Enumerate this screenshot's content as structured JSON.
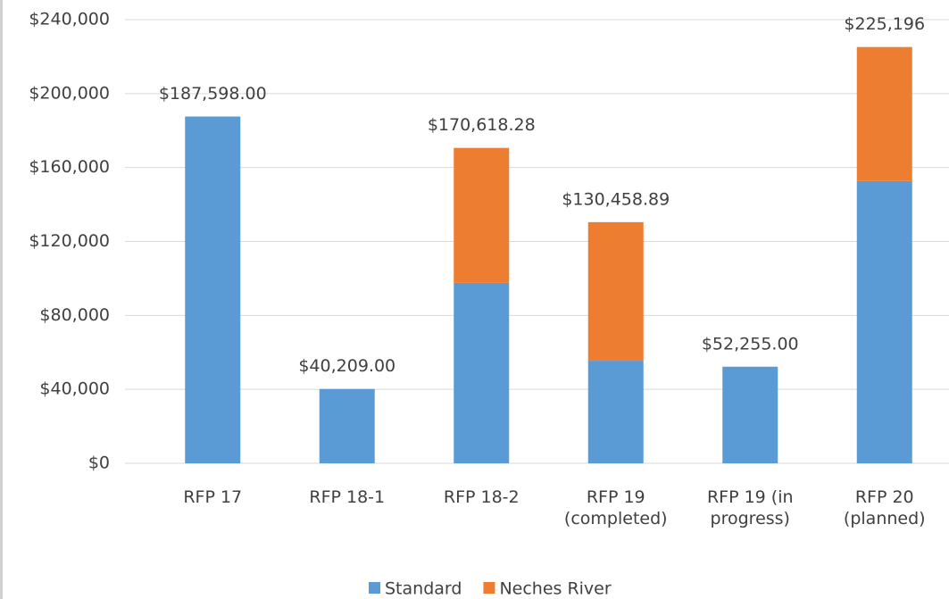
{
  "chart_data": {
    "type": "stacked_bar",
    "categories": [
      "RFP 17",
      "RFP 18-1",
      "RFP 18-2",
      "RFP 19 (completed)",
      "RFP 19 (in progress)",
      "RFP 20 (planned)"
    ],
    "series": [
      {
        "name": "Standard",
        "color": "#5b9bd5",
        "values": [
          187598,
          40209,
          97600,
          55500,
          52255,
          152700
        ]
      },
      {
        "name": "Neches River",
        "color": "#ed7d31",
        "values": [
          null,
          null,
          73018.28,
          74958.89,
          null,
          72496
        ]
      }
    ],
    "totals": [
      187598,
      40209,
      170618.28,
      130458.89,
      52255,
      225196
    ],
    "total_labels": [
      "$187,598.00",
      "$40,209.00",
      "$170,618.28",
      "$130,458.89",
      "$52,255.00",
      "$225,196"
    ],
    "ylim": [
      0,
      240000
    ],
    "yticks": [
      {
        "value": 0,
        "label": "$0"
      },
      {
        "value": 40000,
        "label": "$40,000"
      },
      {
        "value": 80000,
        "label": "$80,000"
      },
      {
        "value": 120000,
        "label": "$120,000"
      },
      {
        "value": 160000,
        "label": "$160,000"
      },
      {
        "value": 200000,
        "label": "$200,000"
      },
      {
        "value": 240000,
        "label": "$240,000"
      }
    ],
    "grid": true,
    "legend": "bottom"
  }
}
